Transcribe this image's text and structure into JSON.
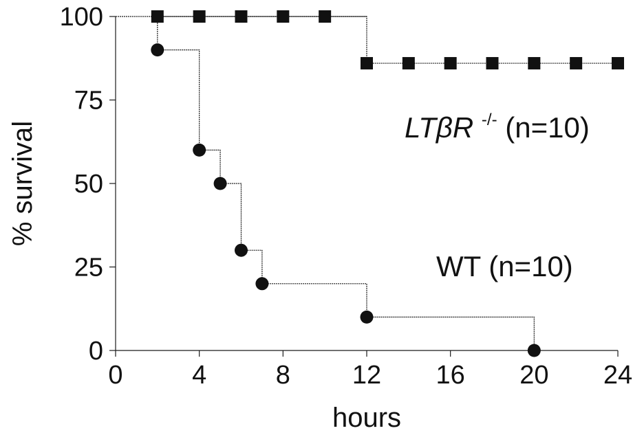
{
  "chart_data": {
    "type": "line",
    "xlabel": "hours",
    "ylabel": "% survival",
    "xlim": [
      0,
      24
    ],
    "ylim": [
      0,
      100
    ],
    "xticks": [
      0,
      4,
      8,
      12,
      16,
      20,
      24
    ],
    "yticks": [
      0,
      25,
      50,
      75,
      100
    ],
    "grid": false,
    "line_style": "step",
    "series": [
      {
        "label_main": "LTβR",
        "label_super": "-/-",
        "label_suffix": " (n=10)",
        "marker": "square",
        "color": "#111111",
        "x": [
          2,
          4,
          6,
          8,
          10,
          12,
          14,
          16,
          18,
          20,
          22,
          24
        ],
        "y": [
          100,
          100,
          100,
          100,
          100,
          86,
          86,
          86,
          86,
          86,
          86,
          86
        ]
      },
      {
        "label_main": "WT (n=10)",
        "marker": "circle",
        "color": "#111111",
        "x": [
          2,
          4,
          5,
          6,
          7,
          12,
          20
        ],
        "y": [
          90,
          60,
          50,
          30,
          20,
          10,
          0
        ]
      }
    ]
  }
}
